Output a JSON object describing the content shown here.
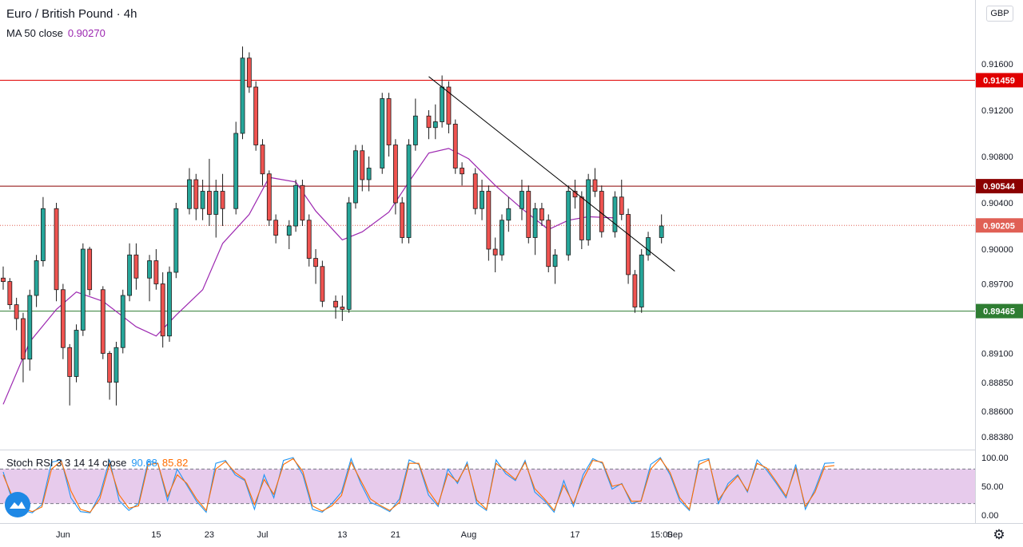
{
  "header": {
    "title": "Euro / British Pound · 4h",
    "ma_label": "MA 50 close",
    "ma_value": "0.90270",
    "currency": "GBP"
  },
  "oscillator": {
    "label": "Stoch RSI 3 3 14 14 close",
    "k_value": "90.68",
    "d_value": "85.82"
  },
  "colors": {
    "up": "#26a69a",
    "down": "#ef5350",
    "candle_outline": "#1b1b1b",
    "ma": "#9c27b0",
    "stoch_k": "#2196f3",
    "stoch_d": "#ff6d00",
    "band_fill": "#e1bee7",
    "resistance": "#e00000",
    "mid_level": "#8b0000",
    "support": "#2e7d32",
    "trendline": "#000000"
  },
  "chart_data": [
    {
      "type": "candlestick",
      "title": "Euro / British Pound · 4h",
      "y_ticks": [
        "0.91600",
        "0.91200",
        "0.90800",
        "0.90400",
        "0.90000",
        "0.89700",
        "0.89100",
        "0.88850",
        "0.88600",
        "0.88380"
      ],
      "y_tick_values": [
        0.916,
        0.912,
        0.908,
        0.904,
        0.9,
        0.897,
        0.891,
        0.8885,
        0.886,
        0.8838
      ],
      "x_ticks": [
        "Jun",
        "15",
        "23",
        "Jul",
        "13",
        "21",
        "Aug",
        "17",
        "15:00",
        "Sep"
      ],
      "horizontal_levels": [
        {
          "label": "0.91459",
          "value": 0.91459,
          "role": "resistance"
        },
        {
          "label": "0.90544",
          "value": 0.90544,
          "role": "mid_level"
        },
        {
          "label": "0.90205",
          "value": 0.90205,
          "role": "current_price"
        },
        {
          "label": "0.89465",
          "value": 0.89465,
          "role": "support"
        }
      ],
      "trendline": [
        {
          "date": "Jul 26",
          "price": 0.9149
        },
        {
          "date": "Sep 1",
          "price": 0.8981
        }
      ],
      "ma_series": [
        {
          "date": "May 23",
          "value": 0.8866
        },
        {
          "date": "May 27",
          "value": 0.892
        },
        {
          "date": "May 31",
          "value": 0.8948
        },
        {
          "date": "Jun 3",
          "value": 0.8963
        },
        {
          "date": "Jun 7",
          "value": 0.8955
        },
        {
          "date": "Jun 12",
          "value": 0.8933
        },
        {
          "date": "Jun 15",
          "value": 0.8925
        },
        {
          "date": "Jun 18",
          "value": 0.8943
        },
        {
          "date": "Jun 22",
          "value": 0.8965
        },
        {
          "date": "Jun 25",
          "value": 0.9005
        },
        {
          "date": "Jun 29",
          "value": 0.903
        },
        {
          "date": "Jul 2",
          "value": 0.9062
        },
        {
          "date": "Jul 6",
          "value": 0.9058
        },
        {
          "date": "Jul 9",
          "value": 0.9033
        },
        {
          "date": "Jul 13",
          "value": 0.9008
        },
        {
          "date": "Jul 16",
          "value": 0.9015
        },
        {
          "date": "Jul 20",
          "value": 0.9032
        },
        {
          "date": "Jul 23",
          "value": 0.9058
        },
        {
          "date": "Jul 26",
          "value": 0.9083
        },
        {
          "date": "Jul 29",
          "value": 0.9087
        },
        {
          "date": "Aug 1",
          "value": 0.9078
        },
        {
          "date": "Aug 5",
          "value": 0.9055
        },
        {
          "date": "Aug 9",
          "value": 0.9035
        },
        {
          "date": "Aug 13",
          "value": 0.9017
        },
        {
          "date": "Aug 16",
          "value": 0.9025
        },
        {
          "date": "Aug 19",
          "value": 0.9028
        },
        {
          "date": "Aug 23",
          "value": 0.9027
        }
      ],
      "candles": [
        {
          "date": "May 23",
          "o": 0.8975,
          "h": 0.8985,
          "l": 0.8965,
          "c": 0.8972
        },
        {
          "date": "May 24",
          "o": 0.8972,
          "h": 0.8975,
          "l": 0.8948,
          "c": 0.8952
        },
        {
          "date": "May 25",
          "o": 0.8952,
          "h": 0.8958,
          "l": 0.893,
          "c": 0.894
        },
        {
          "date": "May 26",
          "o": 0.894,
          "h": 0.8945,
          "l": 0.8885,
          "c": 0.8905
        },
        {
          "date": "May 27",
          "o": 0.8905,
          "h": 0.8965,
          "l": 0.8895,
          "c": 0.896
        },
        {
          "date": "May 28",
          "o": 0.896,
          "h": 0.8995,
          "l": 0.895,
          "c": 0.899
        },
        {
          "date": "May 29",
          "o": 0.899,
          "h": 0.9045,
          "l": 0.8985,
          "c": 0.9035
        },
        {
          "date": "May 31",
          "o": 0.9035,
          "h": 0.904,
          "l": 0.8955,
          "c": 0.8965
        },
        {
          "date": "Jun 1",
          "o": 0.8965,
          "h": 0.897,
          "l": 0.8905,
          "c": 0.8915
        },
        {
          "date": "Jun 2",
          "o": 0.8915,
          "h": 0.8918,
          "l": 0.8865,
          "c": 0.889
        },
        {
          "date": "Jun 3",
          "o": 0.889,
          "h": 0.8935,
          "l": 0.8885,
          "c": 0.893
        },
        {
          "date": "Jun 4",
          "o": 0.893,
          "h": 0.9005,
          "l": 0.8925,
          "c": 0.9
        },
        {
          "date": "Jun 5",
          "o": 0.9,
          "h": 0.9002,
          "l": 0.896,
          "c": 0.8965
        },
        {
          "date": "Jun 7",
          "o": 0.8965,
          "h": 0.8968,
          "l": 0.8905,
          "c": 0.891
        },
        {
          "date": "Jun 8",
          "o": 0.891,
          "h": 0.8912,
          "l": 0.887,
          "c": 0.8885
        },
        {
          "date": "Jun 9",
          "o": 0.8885,
          "h": 0.892,
          "l": 0.8865,
          "c": 0.8915
        },
        {
          "date": "Jun 10",
          "o": 0.8915,
          "h": 0.8965,
          "l": 0.891,
          "c": 0.896
        },
        {
          "date": "Jun 11",
          "o": 0.896,
          "h": 0.9005,
          "l": 0.8955,
          "c": 0.8995
        },
        {
          "date": "Jun 12",
          "o": 0.8995,
          "h": 0.9005,
          "l": 0.8965,
          "c": 0.8975
        },
        {
          "date": "Jun 14",
          "o": 0.8975,
          "h": 0.8995,
          "l": 0.8955,
          "c": 0.899
        },
        {
          "date": "Jun 15",
          "o": 0.899,
          "h": 0.9,
          "l": 0.8965,
          "c": 0.897
        },
        {
          "date": "Jun 16",
          "o": 0.897,
          "h": 0.898,
          "l": 0.8915,
          "c": 0.8925
        },
        {
          "date": "Jun 17",
          "o": 0.8925,
          "h": 0.8985,
          "l": 0.892,
          "c": 0.898
        },
        {
          "date": "Jun 18",
          "o": 0.898,
          "h": 0.904,
          "l": 0.8975,
          "c": 0.9035
        },
        {
          "date": "Jun 20",
          "o": 0.9035,
          "h": 0.907,
          "l": 0.903,
          "c": 0.906
        },
        {
          "date": "Jun 21",
          "o": 0.906,
          "h": 0.9065,
          "l": 0.9025,
          "c": 0.9035
        },
        {
          "date": "Jun 22",
          "o": 0.9035,
          "h": 0.906,
          "l": 0.9025,
          "c": 0.905
        },
        {
          "date": "Jun 23",
          "o": 0.905,
          "h": 0.9078,
          "l": 0.902,
          "c": 0.903
        },
        {
          "date": "Jun 24",
          "o": 0.903,
          "h": 0.906,
          "l": 0.901,
          "c": 0.905
        },
        {
          "date": "Jun 25",
          "o": 0.905,
          "h": 0.9065,
          "l": 0.902,
          "c": 0.9035
        },
        {
          "date": "Jun 27",
          "o": 0.9035,
          "h": 0.911,
          "l": 0.903,
          "c": 0.91
        },
        {
          "date": "Jun 28",
          "o": 0.91,
          "h": 0.9175,
          "l": 0.9095,
          "c": 0.9165
        },
        {
          "date": "Jun 29",
          "o": 0.9165,
          "h": 0.917,
          "l": 0.9135,
          "c": 0.914
        },
        {
          "date": "Jun 30",
          "o": 0.914,
          "h": 0.9145,
          "l": 0.9085,
          "c": 0.909
        },
        {
          "date": "Jul 1",
          "o": 0.909,
          "h": 0.9095,
          "l": 0.9055,
          "c": 0.9065
        },
        {
          "date": "Jul 2",
          "o": 0.9065,
          "h": 0.9068,
          "l": 0.902,
          "c": 0.9025
        },
        {
          "date": "Jul 3",
          "o": 0.9025,
          "h": 0.903,
          "l": 0.9005,
          "c": 0.9012
        },
        {
          "date": "Jul 5",
          "o": 0.9012,
          "h": 0.9025,
          "l": 0.9,
          "c": 0.902
        },
        {
          "date": "Jul 6",
          "o": 0.902,
          "h": 0.906,
          "l": 0.9015,
          "c": 0.9055
        },
        {
          "date": "Jul 7",
          "o": 0.9055,
          "h": 0.906,
          "l": 0.902,
          "c": 0.9025
        },
        {
          "date": "Jul 8",
          "o": 0.9025,
          "h": 0.903,
          "l": 0.8985,
          "c": 0.8992
        },
        {
          "date": "Jul 9",
          "o": 0.8992,
          "h": 0.9,
          "l": 0.897,
          "c": 0.8985
        },
        {
          "date": "Jul 10",
          "o": 0.8985,
          "h": 0.899,
          "l": 0.895,
          "c": 0.8955
        },
        {
          "date": "Jul 12",
          "o": 0.8955,
          "h": 0.896,
          "l": 0.894,
          "c": 0.895
        },
        {
          "date": "Jul 13",
          "o": 0.895,
          "h": 0.896,
          "l": 0.8938,
          "c": 0.8948
        },
        {
          "date": "Jul 14",
          "o": 0.8948,
          "h": 0.9045,
          "l": 0.8945,
          "c": 0.904
        },
        {
          "date": "Jul 15",
          "o": 0.904,
          "h": 0.909,
          "l": 0.9035,
          "c": 0.9085
        },
        {
          "date": "Jul 16",
          "o": 0.9085,
          "h": 0.909,
          "l": 0.905,
          "c": 0.906
        },
        {
          "date": "Jul 17",
          "o": 0.906,
          "h": 0.908,
          "l": 0.905,
          "c": 0.907
        },
        {
          "date": "Jul 19",
          "o": 0.907,
          "h": 0.9135,
          "l": 0.9065,
          "c": 0.913
        },
        {
          "date": "Jul 20",
          "o": 0.913,
          "h": 0.9135,
          "l": 0.908,
          "c": 0.909
        },
        {
          "date": "Jul 21",
          "o": 0.909,
          "h": 0.9095,
          "l": 0.903,
          "c": 0.904
        },
        {
          "date": "Jul 22",
          "o": 0.904,
          "h": 0.9045,
          "l": 0.9005,
          "c": 0.901
        },
        {
          "date": "Jul 23",
          "o": 0.901,
          "h": 0.9095,
          "l": 0.9005,
          "c": 0.909
        },
        {
          "date": "Jul 24",
          "o": 0.909,
          "h": 0.913,
          "l": 0.9085,
          "c": 0.9115
        },
        {
          "date": "Jul 26",
          "o": 0.9115,
          "h": 0.912,
          "l": 0.9095,
          "c": 0.9105
        },
        {
          "date": "Jul 27",
          "o": 0.9105,
          "h": 0.9125,
          "l": 0.9095,
          "c": 0.911
        },
        {
          "date": "Jul 28",
          "o": 0.911,
          "h": 0.915,
          "l": 0.9105,
          "c": 0.914
        },
        {
          "date": "Jul 29",
          "o": 0.914,
          "h": 0.9145,
          "l": 0.91,
          "c": 0.9108
        },
        {
          "date": "Jul 30",
          "o": 0.9108,
          "h": 0.9112,
          "l": 0.9065,
          "c": 0.907
        },
        {
          "date": "Jul 31",
          "o": 0.907,
          "h": 0.9075,
          "l": 0.9055,
          "c": 0.9065
        },
        {
          "date": "Aug 2",
          "o": 0.9065,
          "h": 0.907,
          "l": 0.903,
          "c": 0.9035
        },
        {
          "date": "Aug 3",
          "o": 0.9035,
          "h": 0.906,
          "l": 0.9025,
          "c": 0.905
        },
        {
          "date": "Aug 4",
          "o": 0.905,
          "h": 0.9055,
          "l": 0.899,
          "c": 0.9
        },
        {
          "date": "Aug 5",
          "o": 0.9,
          "h": 0.901,
          "l": 0.898,
          "c": 0.8995
        },
        {
          "date": "Aug 6",
          "o": 0.8995,
          "h": 0.903,
          "l": 0.899,
          "c": 0.9025
        },
        {
          "date": "Aug 7",
          "o": 0.9025,
          "h": 0.9045,
          "l": 0.9015,
          "c": 0.9035
        },
        {
          "date": "Aug 9",
          "o": 0.9035,
          "h": 0.906,
          "l": 0.9025,
          "c": 0.905
        },
        {
          "date": "Aug 10",
          "o": 0.905,
          "h": 0.9055,
          "l": 0.9005,
          "c": 0.901
        },
        {
          "date": "Aug 11",
          "o": 0.901,
          "h": 0.904,
          "l": 0.8995,
          "c": 0.9035
        },
        {
          "date": "Aug 12",
          "o": 0.9035,
          "h": 0.904,
          "l": 0.902,
          "c": 0.9025
        },
        {
          "date": "Aug 13",
          "o": 0.9025,
          "h": 0.903,
          "l": 0.898,
          "c": 0.8985
        },
        {
          "date": "Aug 14",
          "o": 0.8985,
          "h": 0.9,
          "l": 0.897,
          "c": 0.8995
        },
        {
          "date": "Aug 16",
          "o": 0.8995,
          "h": 0.9055,
          "l": 0.899,
          "c": 0.905
        },
        {
          "date": "Aug 17",
          "o": 0.905,
          "h": 0.906,
          "l": 0.9035,
          "c": 0.9045
        },
        {
          "date": "Aug 18",
          "o": 0.9045,
          "h": 0.905,
          "l": 0.9,
          "c": 0.9008
        },
        {
          "date": "Aug 19",
          "o": 0.9008,
          "h": 0.9065,
          "l": 0.9003,
          "c": 0.906
        },
        {
          "date": "Aug 20",
          "o": 0.906,
          "h": 0.907,
          "l": 0.9045,
          "c": 0.905
        },
        {
          "date": "Aug 21",
          "o": 0.905,
          "h": 0.9055,
          "l": 0.901,
          "c": 0.9015
        },
        {
          "date": "Aug 23",
          "o": 0.9015,
          "h": 0.905,
          "l": 0.901,
          "c": 0.9045
        },
        {
          "date": "Aug 24",
          "o": 0.9045,
          "h": 0.906,
          "l": 0.9025,
          "c": 0.903
        },
        {
          "date": "Aug 25",
          "o": 0.903,
          "h": 0.9035,
          "l": 0.897,
          "c": 0.8978
        },
        {
          "date": "Aug 26",
          "o": 0.8978,
          "h": 0.8982,
          "l": 0.8945,
          "c": 0.895
        },
        {
          "date": "Aug 27",
          "o": 0.895,
          "h": 0.9,
          "l": 0.8945,
          "c": 0.8995
        },
        {
          "date": "Aug 28",
          "o": 0.8995,
          "h": 0.9015,
          "l": 0.899,
          "c": 0.901
        },
        {
          "date": "Aug 30",
          "o": 0.901,
          "h": 0.903,
          "l": 0.9005,
          "c": 0.902
        }
      ]
    },
    {
      "type": "line",
      "title": "Stoch RSI 3 3 14 14 close",
      "y_ticks": [
        "100.00",
        "50.00",
        "0.00"
      ],
      "y_tick_values": [
        100,
        50,
        0
      ],
      "ylim": [
        0,
        100
      ],
      "bands": [
        20,
        80
      ],
      "series": [
        {
          "name": "K",
          "values": [
            75,
            22,
            8,
            4,
            18,
            92,
            96,
            30,
            6,
            4,
            35,
            96,
            25,
            8,
            20,
            94,
            90,
            25,
            80,
            52,
            24,
            5,
            90,
            95,
            70,
            60,
            10,
            70,
            30,
            95,
            100,
            70,
            10,
            5,
            20,
            40,
            98,
            55,
            22,
            15,
            6,
            28,
            96,
            88,
            35,
            15,
            80,
            55,
            92,
            20,
            8,
            96,
            72,
            60,
            95,
            40,
            25,
            5,
            60,
            15,
            70,
            98,
            90,
            45,
            55,
            20,
            25,
            88,
            100,
            70,
            25,
            8,
            94,
            98,
            20,
            55,
            70,
            40,
            96,
            78,
            55,
            30,
            88,
            10,
            45,
            90,
            91
          ]
        },
        {
          "name": "D",
          "values": [
            70,
            30,
            12,
            6,
            14,
            80,
            94,
            42,
            10,
            5,
            28,
            88,
            35,
            12,
            16,
            88,
            90,
            32,
            70,
            55,
            28,
            8,
            80,
            93,
            74,
            62,
            18,
            62,
            36,
            88,
            98,
            76,
            16,
            7,
            16,
            34,
            92,
            60,
            28,
            17,
            8,
            22,
            90,
            90,
            42,
            18,
            72,
            58,
            88,
            26,
            10,
            90,
            76,
            62,
            92,
            46,
            28,
            8,
            52,
            20,
            62,
            95,
            92,
            50,
            54,
            24,
            24,
            80,
            98,
            74,
            30,
            10,
            88,
            96,
            26,
            50,
            68,
            42,
            90,
            82,
            58,
            33,
            82,
            15,
            40,
            84,
            86
          ]
        }
      ]
    }
  ]
}
